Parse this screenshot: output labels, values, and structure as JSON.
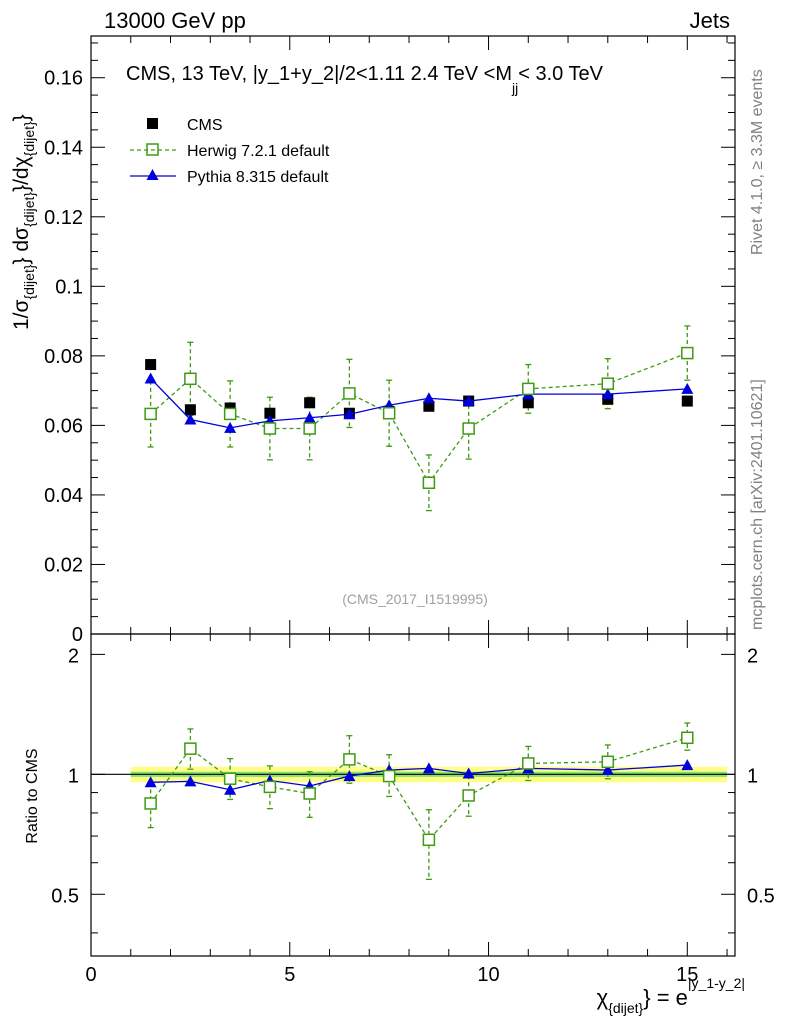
{
  "header": {
    "energy_label": "13000 GeV pp",
    "category_label": "Jets"
  },
  "side_labels": {
    "rivet": "Rivet 4.1.0, ≥ 3.3M events",
    "mcplots": "mcplots.cern.ch [arXiv:2401.10621]"
  },
  "colors": {
    "cms": "#000000",
    "herwig": "#3d9a12",
    "pythia": "#0000dd",
    "band_inner": "#66dd66",
    "band_outer": "#ffff88"
  },
  "chart_data": [
    {
      "type": "scatter",
      "panel": "main",
      "title": "CMS, 13 TeV, |y_1+y_2|/2<1.11 2.4 TeV <M",
      "title_sub": "jj",
      "title_tail": "< 3.0 TeV",
      "ylabel_parts": [
        "1/σ",
        "{dijet}",
        "} dσ",
        "{dijet}",
        "}/dχ",
        "{dijet}",
        "}"
      ],
      "watermark": "(CMS_2017_I1519995)",
      "xlim": [
        0,
        16.2
      ],
      "ylim": [
        0,
        0.172
      ],
      "yticks": [
        0,
        0.02,
        0.04,
        0.06,
        0.08,
        0.1,
        0.12,
        0.14,
        0.16
      ],
      "ytick_labels": [
        "0",
        "0.02",
        "0.04",
        "0.06",
        "0.08",
        "0.1",
        "0.12",
        "0.14",
        "0.16"
      ],
      "legend": [
        "CMS",
        "Herwig 7.2.1 default",
        "Pythia 8.315 default"
      ],
      "x": [
        1.5,
        2.5,
        3.5,
        4.5,
        5.5,
        6.5,
        7.5,
        8.5,
        9.5,
        11,
        13,
        15
      ],
      "x_edges": [
        1,
        2,
        3,
        4,
        5,
        6,
        7,
        8,
        9,
        10,
        12,
        14,
        16
      ],
      "series": [
        {
          "name": "CMS",
          "values": [
            0.0775,
            0.0645,
            0.065,
            0.0635,
            0.0665,
            0.0635,
            0.064,
            0.0655,
            0.067,
            0.0665,
            0.0675,
            0.067
          ]
        },
        {
          "name": "Herwig 7.2.1 default",
          "values": [
            0.0633,
            0.0734,
            0.0633,
            0.0591,
            0.0591,
            0.0692,
            0.0635,
            0.0435,
            0.0591,
            0.0705,
            0.072,
            0.0808
          ],
          "err": [
            0.0095,
            0.0105,
            0.0095,
            0.009,
            0.009,
            0.0098,
            0.0095,
            0.008,
            0.0088,
            0.007,
            0.0072,
            0.0078
          ]
        },
        {
          "name": "Pythia 8.315 default",
          "values": [
            0.0735,
            0.0617,
            0.0593,
            0.0613,
            0.0622,
            0.0632,
            0.0658,
            0.0678,
            0.067,
            0.069,
            0.069,
            0.0705
          ]
        }
      ]
    },
    {
      "type": "scatter",
      "panel": "ratio",
      "ylabel": "Ratio to CMS",
      "xlabel_main": "χ",
      "xlabel_sub": "{dijet}",
      "xlabel_rest": "} = e",
      "xlabel_sup": "|y_1-y_2|",
      "xlim": [
        0,
        16.2
      ],
      "ylim": [
        0.35,
        2.25
      ],
      "yscale": "log",
      "yticks": [
        0.5,
        1,
        2
      ],
      "ytick_labels": [
        "0.5",
        "1",
        "2"
      ],
      "xticks": [
        0,
        5,
        10,
        15
      ],
      "xtick_labels": [
        "0",
        "5",
        "10",
        "15"
      ],
      "band_range": [
        1,
        16
      ],
      "band_inner": [
        0.985,
        1.015
      ],
      "band_outer": [
        0.955,
        1.045
      ],
      "series": [
        {
          "name": "Herwig 7.2.1 default",
          "values": [
            0.845,
            1.16,
            0.975,
            0.93,
            0.895,
            1.09,
            0.99,
            0.685,
            0.885,
            1.065,
            1.075,
            1.235
          ],
          "err_lo": [
            0.11,
            0.13,
            0.11,
            0.11,
            0.115,
            0.14,
            0.11,
            0.14,
            0.1,
            0.1,
            0.1,
            0.085
          ],
          "err_hi": [
            0.11,
            0.14,
            0.12,
            0.12,
            0.12,
            0.16,
            0.13,
            0.13,
            0.11,
            0.11,
            0.11,
            0.11
          ]
        },
        {
          "name": "Pythia 8.315 default",
          "values": [
            0.955,
            0.96,
            0.915,
            0.965,
            0.935,
            0.99,
            1.025,
            1.035,
            1.005,
            1.035,
            1.025,
            1.055
          ]
        }
      ]
    }
  ]
}
